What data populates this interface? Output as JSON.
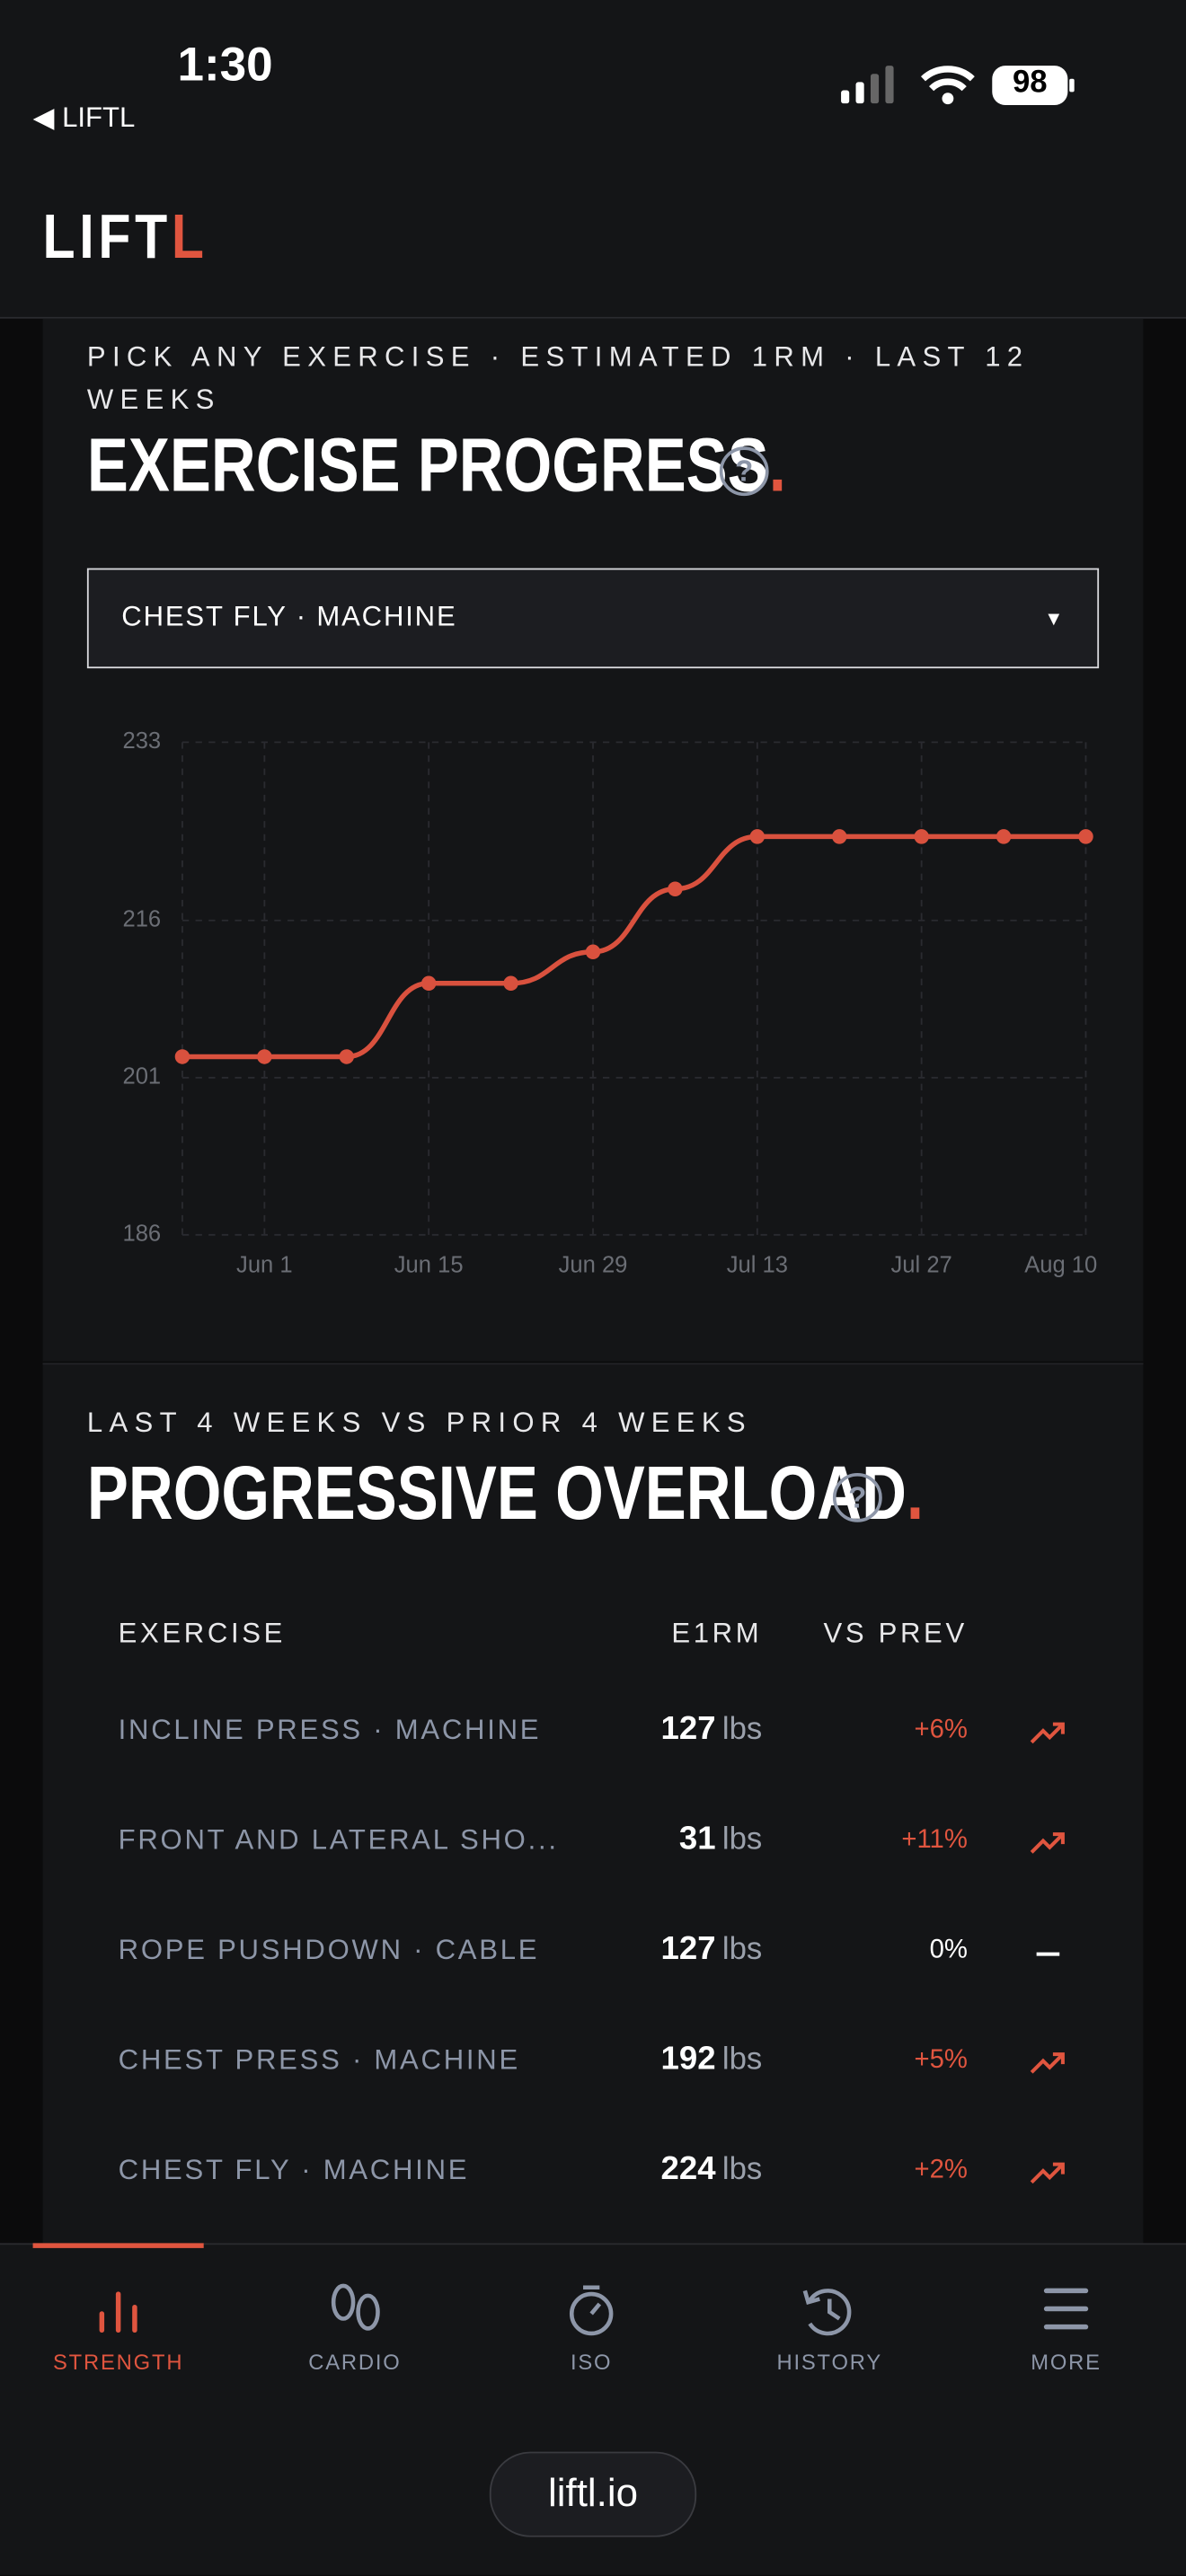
{
  "status_bar": {
    "time": "1:30",
    "back_label": "◀ LIFTL",
    "battery": "98"
  },
  "app_header": {
    "logo": "LIFTL"
  },
  "exercise_progress": {
    "subtitle": "PICK ANY EXERCISE · ESTIMATED 1RM · LAST 12 WEEKS",
    "title": "EXERCISE PROGRESS.",
    "help": "?",
    "selected_exercise": "CHEST FLY · MACHINE",
    "dropdown_caret": "▾"
  },
  "chart_data": {
    "type": "line",
    "categories": [
      null,
      "Jun 1",
      null,
      "Jun 15",
      null,
      "Jun 29",
      null,
      "Jul 13",
      null,
      "Jul 27",
      null,
      "Aug 10"
    ],
    "series": [
      {
        "name": "Estimated 1RM",
        "color": "#d9513e",
        "values": [
          203,
          203,
          203,
          210,
          210,
          213,
          219,
          224,
          224,
          224,
          224,
          224
        ]
      }
    ],
    "ylim": [
      186,
      233
    ],
    "yticks": [
      186,
      201,
      216,
      233
    ],
    "grid": true
  },
  "progressive_overload": {
    "subtitle": "LAST 4 WEEKS VS PRIOR 4 WEEKS",
    "title": "PROGRESSIVE OVERLOAD.",
    "help": "?",
    "table": {
      "headers": [
        "EXERCISE",
        "E1RM",
        "VS PREV"
      ],
      "rows": [
        {
          "exercise": "INCLINE PRESS · MACHINE",
          "e1rm": "127",
          "unit": "lbs",
          "change": "+6%",
          "trend": "up"
        },
        {
          "exercise": "FRONT AND LATERAL SHO...",
          "e1rm": "31",
          "unit": "lbs",
          "change": "+11%",
          "trend": "up"
        },
        {
          "exercise": "ROPE PUSHDOWN · CABLE",
          "e1rm": "127",
          "unit": "lbs",
          "change": "0%",
          "trend": "flat"
        },
        {
          "exercise": "CHEST PRESS · MACHINE",
          "e1rm": "192",
          "unit": "lbs",
          "change": "+5%",
          "trend": "up"
        },
        {
          "exercise": "CHEST FLY · MACHINE",
          "e1rm": "224",
          "unit": "lbs",
          "change": "+2%",
          "trend": "up"
        }
      ]
    }
  },
  "bottom_nav": {
    "items": [
      "STRENGTH",
      "CARDIO",
      "ISO",
      "HISTORY",
      "MORE"
    ],
    "active": 0
  },
  "browser": {
    "url": "liftl.io"
  }
}
